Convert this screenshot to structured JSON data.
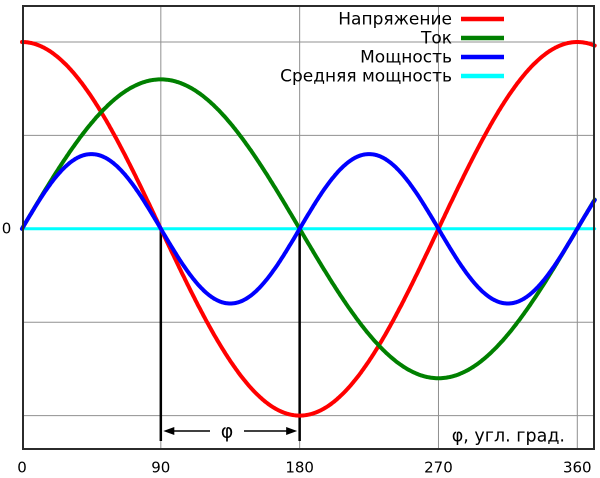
{
  "figure": {
    "background": "#ffffff",
    "border_color": "#2b2b2b",
    "grid_color": "#909090",
    "annotation_color": "#000000",
    "text_color": "#000000"
  },
  "chart_data": {
    "type": "line",
    "title": "",
    "xlabel": "φ, угл. град.",
    "ylabel": "",
    "x_ticks": [
      "0",
      "90",
      "180",
      "270",
      "360"
    ],
    "x_tick_values": [
      0,
      90,
      180,
      270,
      360
    ],
    "y_tick_labels": [
      "0"
    ],
    "x_range_deg": [
      0,
      371.5
    ],
    "y_range_units": [
      -2.36,
      2.4
    ],
    "h_gridlines_at_units": [
      2,
      1,
      -1,
      -2
    ],
    "v_gridlines_at_deg": [
      90,
      180,
      270,
      360
    ],
    "grid": true,
    "legend_position": "top-right",
    "series": [
      {
        "name": "Напряжение",
        "color": "#ff0000",
        "waveform": "cos",
        "amplitude": 2.0,
        "period_deg": 360,
        "stroke_width": 4
      },
      {
        "name": "Ток",
        "color": "#008000",
        "waveform": "sin",
        "amplitude": 1.6,
        "period_deg": 360,
        "stroke_width": 4
      },
      {
        "name": "Мощность",
        "color": "#0000ff",
        "waveform": "sin",
        "amplitude": 0.8,
        "period_deg": 180,
        "stroke_width": 4
      },
      {
        "name": "Средняя мощность",
        "color": "#00ffff",
        "waveform": "const",
        "value": 0,
        "amplitude": 0,
        "period_deg": 0,
        "stroke_width": 3
      }
    ],
    "annotation": {
      "label": "φ",
      "from_deg": 90,
      "to_deg": 180,
      "phase_shift_deg": 90
    }
  }
}
